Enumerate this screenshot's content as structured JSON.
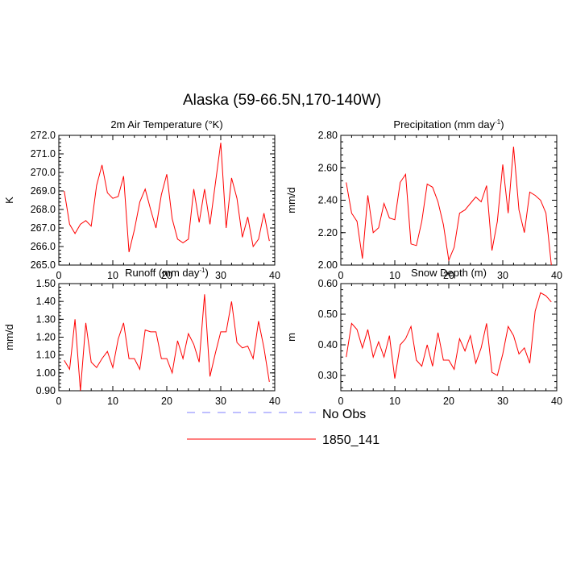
{
  "title": "Alaska (59-66.5N,170-140W)",
  "legend": {
    "entries": [
      {
        "label": "No Obs",
        "color": "#7f7fff",
        "dash": "dashed"
      },
      {
        "label": "1850_141",
        "color": "#ff0000",
        "dash": "solid"
      }
    ]
  },
  "chart_data": [
    {
      "type": "line",
      "title": "2m Air Temperature (°K)",
      "ylabel": "K",
      "xlim": [
        0,
        40
      ],
      "ylim": [
        265.0,
        272.0
      ],
      "xticks": [
        0,
        10,
        20,
        30,
        40
      ],
      "yticks": [
        "265.0",
        "266.0",
        "267.0",
        "268.0",
        "269.0",
        "270.0",
        "271.0",
        "272.0"
      ],
      "ytick_values": [
        265,
        266,
        267,
        268,
        269,
        270,
        271,
        272
      ],
      "series": [
        {
          "name": "1850_141",
          "color": "#ff0000",
          "x": [
            1,
            2,
            3,
            4,
            5,
            6,
            7,
            8,
            9,
            10,
            11,
            12,
            13,
            14,
            15,
            16,
            17,
            18,
            19,
            20,
            21,
            22,
            23,
            24,
            25,
            26,
            27,
            28,
            29,
            30,
            31,
            32,
            33,
            34,
            35,
            36,
            37,
            38,
            39
          ],
          "values": [
            269.0,
            267.2,
            266.7,
            267.2,
            267.4,
            267.1,
            269.3,
            270.4,
            268.9,
            268.6,
            268.7,
            269.8,
            265.7,
            266.9,
            268.4,
            269.1,
            268.0,
            267.0,
            268.8,
            269.9,
            267.5,
            266.4,
            266.2,
            266.4,
            269.1,
            267.3,
            269.1,
            267.2,
            269.4,
            271.6,
            267.0,
            269.7,
            268.6,
            266.5,
            267.6,
            266.0,
            266.4,
            267.8,
            266.3
          ]
        }
      ]
    },
    {
      "type": "line",
      "title": "Precipitation (mm day",
      "title_sup": "-1",
      "title_end": ")",
      "ylabel": "mm/d",
      "xlim": [
        0,
        40
      ],
      "ylim": [
        2.0,
        2.8
      ],
      "xticks": [
        0,
        10,
        20,
        30,
        40
      ],
      "yticks": [
        "2.00",
        "2.20",
        "2.40",
        "2.60",
        "2.80"
      ],
      "ytick_values": [
        2.0,
        2.2,
        2.4,
        2.6,
        2.8
      ],
      "series": [
        {
          "name": "1850_141",
          "color": "#ff0000",
          "x": [
            1,
            2,
            3,
            4,
            5,
            6,
            7,
            8,
            9,
            10,
            11,
            12,
            13,
            14,
            15,
            16,
            17,
            18,
            19,
            20,
            21,
            22,
            23,
            24,
            25,
            26,
            27,
            28,
            29,
            30,
            31,
            32,
            33,
            34,
            35,
            36,
            37,
            38,
            39
          ],
          "values": [
            2.51,
            2.32,
            2.27,
            2.04,
            2.43,
            2.2,
            2.23,
            2.38,
            2.29,
            2.28,
            2.51,
            2.56,
            2.13,
            2.12,
            2.27,
            2.5,
            2.48,
            2.39,
            2.25,
            2.03,
            2.11,
            2.32,
            2.34,
            2.38,
            2.42,
            2.39,
            2.49,
            2.09,
            2.27,
            2.62,
            2.32,
            2.73,
            2.34,
            2.2,
            2.45,
            2.43,
            2.4,
            2.32,
            2.0
          ]
        }
      ]
    },
    {
      "type": "line",
      "title": "Runoff (mm day",
      "title_sup": "-1",
      "title_end": ")",
      "ylabel": "mm/d",
      "xlim": [
        0,
        40
      ],
      "ylim": [
        0.9,
        1.5
      ],
      "xticks": [
        0,
        10,
        20,
        30,
        40
      ],
      "yticks": [
        "0.90",
        "1.00",
        "1.10",
        "1.20",
        "1.30",
        "1.40",
        "1.50"
      ],
      "ytick_values": [
        0.9,
        1.0,
        1.1,
        1.2,
        1.3,
        1.4,
        1.5
      ],
      "series": [
        {
          "name": "1850_141",
          "color": "#ff0000",
          "x": [
            1,
            2,
            3,
            4,
            5,
            6,
            7,
            8,
            9,
            10,
            11,
            12,
            13,
            14,
            15,
            16,
            17,
            18,
            19,
            20,
            21,
            22,
            23,
            24,
            25,
            26,
            27,
            28,
            29,
            30,
            31,
            32,
            33,
            34,
            35,
            36,
            37,
            38,
            39
          ],
          "values": [
            1.07,
            1.02,
            1.3,
            0.9,
            1.28,
            1.06,
            1.03,
            1.08,
            1.12,
            1.03,
            1.19,
            1.28,
            1.08,
            1.08,
            1.02,
            1.24,
            1.23,
            1.23,
            1.08,
            1.08,
            1.0,
            1.18,
            1.08,
            1.22,
            1.16,
            1.06,
            1.44,
            0.98,
            1.11,
            1.23,
            1.23,
            1.4,
            1.17,
            1.14,
            1.15,
            1.08,
            1.29,
            1.14,
            0.95
          ]
        }
      ]
    },
    {
      "type": "line",
      "title": "Snow Depth (m)",
      "ylabel": "m",
      "xlim": [
        0,
        40
      ],
      "ylim": [
        0.25,
        0.6
      ],
      "xticks": [
        0,
        10,
        20,
        30,
        40
      ],
      "yticks": [
        "0.30",
        "0.40",
        "0.50",
        "0.60"
      ],
      "ytick_values": [
        0.3,
        0.4,
        0.5,
        0.6
      ],
      "series": [
        {
          "name": "1850_141",
          "color": "#ff0000",
          "x": [
            1,
            2,
            3,
            4,
            5,
            6,
            7,
            8,
            9,
            10,
            11,
            12,
            13,
            14,
            15,
            16,
            17,
            18,
            19,
            20,
            21,
            22,
            23,
            24,
            25,
            26,
            27,
            28,
            29,
            30,
            31,
            32,
            33,
            34,
            35,
            36,
            37,
            38,
            39
          ],
          "values": [
            0.36,
            0.47,
            0.45,
            0.39,
            0.45,
            0.36,
            0.41,
            0.36,
            0.43,
            0.29,
            0.4,
            0.42,
            0.46,
            0.35,
            0.33,
            0.4,
            0.33,
            0.44,
            0.35,
            0.35,
            0.32,
            0.42,
            0.38,
            0.43,
            0.34,
            0.39,
            0.47,
            0.31,
            0.3,
            0.37,
            0.46,
            0.43,
            0.37,
            0.39,
            0.34,
            0.51,
            0.57,
            0.56,
            0.54
          ]
        }
      ]
    }
  ]
}
